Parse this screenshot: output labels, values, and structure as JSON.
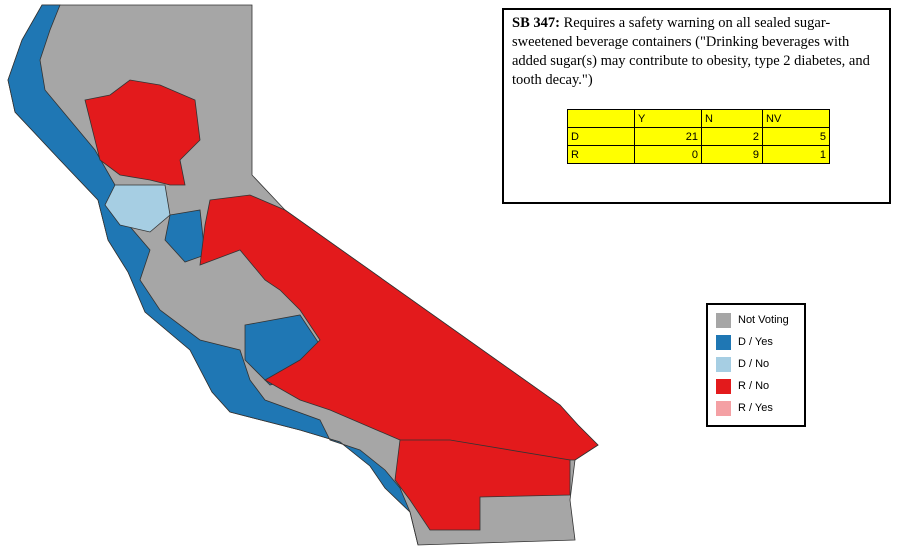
{
  "info": {
    "bill": "SB 347:",
    "description": "Requires a safety warning on all sealed sugar-sweetened beverage containers (\"Drinking beverages with added sugar(s) may contribute to obesity, type 2 diabetes, and tooth decay.\")"
  },
  "table": {
    "header": [
      "Y",
      "N",
      "NV"
    ],
    "rows": [
      {
        "party": "D",
        "values": [
          21,
          2,
          5
        ]
      },
      {
        "party": "R",
        "values": [
          0,
          9,
          1
        ]
      }
    ]
  },
  "legend": {
    "items": [
      {
        "label": "Not Voting",
        "color": "#a6a6a6"
      },
      {
        "label": "D / Yes",
        "color": "#1f77b4"
      },
      {
        "label": "D / No",
        "color": "#a6cee3"
      },
      {
        "label": "R / No",
        "color": "#e31a1c"
      },
      {
        "label": "R / Yes",
        "color": "#f4a0a4"
      }
    ]
  }
}
